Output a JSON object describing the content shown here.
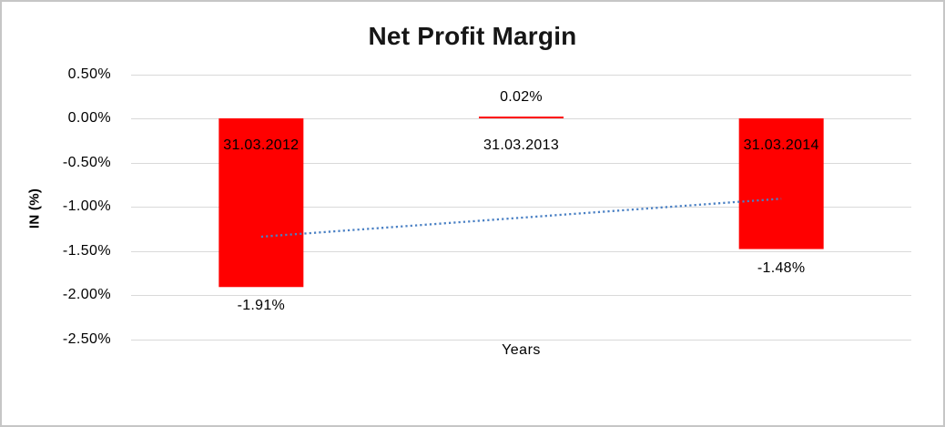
{
  "colors": {
    "background": "#ffffff",
    "chart_border": "#c6c6c6",
    "bar": "#ff0000",
    "gridline": "#d9d9d9",
    "trendline": "#4a80c4",
    "text": "#000000"
  },
  "chart_data": {
    "type": "bar",
    "title": "Net Profit Margin",
    "xlabel": "Years",
    "ylabel": "IN (%)",
    "categories": [
      "31.03.2012",
      "31.03.2013",
      "31.03.2014"
    ],
    "values": [
      -1.91,
      0.02,
      -1.48
    ],
    "data_labels": [
      "-1.91%",
      "0.02%",
      "-1.48%"
    ],
    "ytick_values": [
      0.5,
      0.0,
      -0.5,
      -1.0,
      -1.5,
      -2.0,
      -2.5
    ],
    "ytick_labels": [
      "0.50%",
      "0.00%",
      "-0.50%",
      "-1.00%",
      "-1.50%",
      "-2.00%",
      "-2.50%"
    ],
    "ylim": [
      -2.5,
      0.5
    ],
    "grid": "horizontal",
    "legend": "none",
    "bar_color": "#ff0000",
    "gridline_color": "#d9d9d9",
    "trendline": {
      "type": "linear",
      "style": "dotted",
      "color": "#4a80c4",
      "start_value": -1.34,
      "end_value": -0.91
    }
  }
}
